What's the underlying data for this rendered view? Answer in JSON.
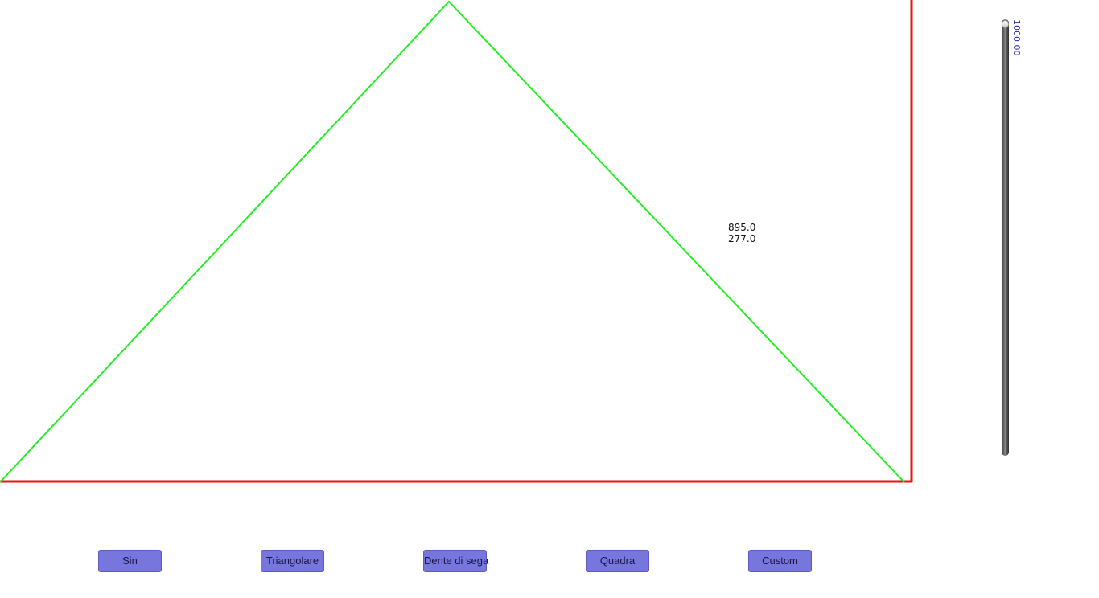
{
  "canvas": {
    "x_range": [
      0,
      1133
    ],
    "y_range": [
      0,
      600
    ],
    "frame_color": "#ee1111",
    "waveform_color": "#22ee22",
    "waveform_points": [
      [
        0,
        600
      ],
      [
        558,
        2
      ],
      [
        1124,
        600
      ]
    ]
  },
  "cursor_readout": {
    "x": "895.0",
    "y": "277.0"
  },
  "amplitude_slider": {
    "value_label": "1000.00",
    "level": 1.0
  },
  "buttons": {
    "sin": "Sin",
    "triangolare": "Triangolare",
    "dente_di_sega": "Dente di sega",
    "quadra": "Quadra",
    "custom": "Custom"
  },
  "colors": {
    "button_fill": "#7676dc",
    "button_text": "#15154a",
    "slider_value_text": "#2a2ab0"
  }
}
